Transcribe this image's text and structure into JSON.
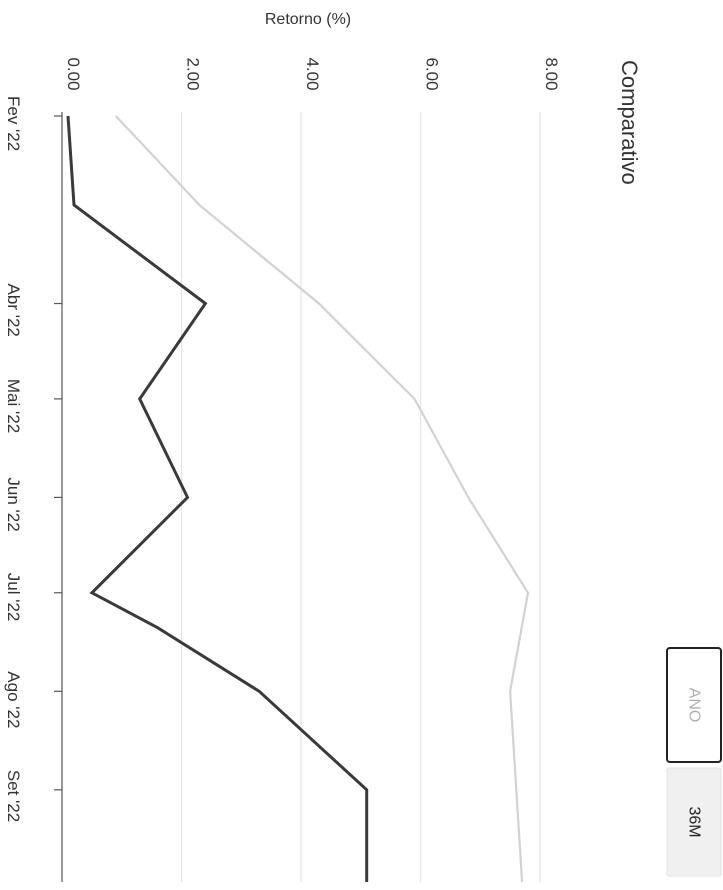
{
  "chart": {
    "title": "Comparativo",
    "ylabel": "Retorno (%)"
  },
  "tabs": [
    {
      "label": "ANO",
      "active": true
    },
    {
      "label": "36M",
      "active": false
    }
  ],
  "colors": {
    "series_dark": "#3a3a3a",
    "series_light": "#d2d2d2",
    "grid": "#e4e4e4",
    "axis": "#555555",
    "tab_active_border": "#222222",
    "tab_active_text": "#b0b0b0",
    "tab_inactive_bg": "#f0f0f0",
    "tab_inactive_text": "#222222"
  },
  "chart_data": {
    "type": "line",
    "orientation": "rotated-90-clockwise",
    "title": "Comparativo",
    "xlabel": "",
    "ylabel": "Retorno (%)",
    "ylim": [
      0,
      8
    ],
    "y_ticks": [
      "0.00",
      "2.00",
      "4.00",
      "6.00",
      "8.00"
    ],
    "x_tick_labels": [
      "Fev '22",
      "Abr '22",
      "Mai '22",
      "Jun '22",
      "Jul '22",
      "Ago '22",
      "Set '22"
    ],
    "grid": true,
    "series": [
      {
        "color": "#3a3a3a",
        "points": [
          {
            "x": "2022-02-01",
            "y": 0.1
          },
          {
            "x": "2022-03-01",
            "y": 0.2
          },
          {
            "x": "2022-04-01",
            "y": 2.4
          },
          {
            "x": "2022-05-01",
            "y": 1.3
          },
          {
            "x": "2022-06-01",
            "y": 2.1
          },
          {
            "x": "2022-07-01",
            "y": 0.5
          },
          {
            "x": "2022-07-12",
            "y": 1.6
          },
          {
            "x": "2022-08-01",
            "y": 3.3
          },
          {
            "x": "2022-09-01",
            "y": 5.1
          },
          {
            "x": "2022-09-30",
            "y": 5.1
          }
        ]
      },
      {
        "color": "#d2d2d2",
        "points": [
          {
            "x": "2022-02-01",
            "y": 0.9
          },
          {
            "x": "2022-03-01",
            "y": 2.3
          },
          {
            "x": "2022-04-01",
            "y": 4.3
          },
          {
            "x": "2022-05-01",
            "y": 5.9
          },
          {
            "x": "2022-06-01",
            "y": 6.8
          },
          {
            "x": "2022-07-01",
            "y": 7.8
          },
          {
            "x": "2022-08-01",
            "y": 7.5
          },
          {
            "x": "2022-09-30",
            "y": 7.7
          }
        ]
      }
    ]
  }
}
